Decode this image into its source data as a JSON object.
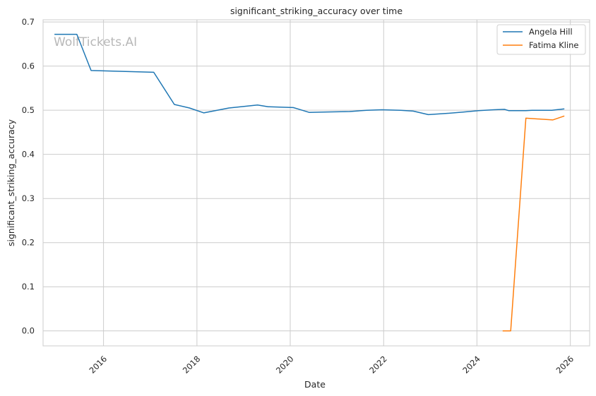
{
  "chart_data": {
    "type": "line",
    "title": "significant_striking_accuracy over time",
    "xlabel": "Date",
    "ylabel": "significant_striking_accuracy",
    "watermark": "WolfTickets.AI",
    "xlim": [
      "2014-09-15",
      "2026-06-01"
    ],
    "ylim": [
      -0.034,
      0.705
    ],
    "x_ticks": [
      "2016",
      "2018",
      "2020",
      "2022",
      "2024",
      "2026"
    ],
    "y_ticks": [
      "0.0",
      "0.1",
      "0.2",
      "0.3",
      "0.4",
      "0.5",
      "0.6",
      "0.7"
    ],
    "grid": true,
    "legend_position": "top-right",
    "series": [
      {
        "name": "Angela Hill",
        "color": "#1f77b4",
        "x": [
          "2014-12-13",
          "2015-06-06",
          "2015-09-26",
          "2017-01-28",
          "2017-07-08",
          "2017-11-04",
          "2018-02-24",
          "2018-09-08",
          "2019-04-20",
          "2019-07-13",
          "2020-01-25",
          "2020-03-01",
          "2020-05-30",
          "2020-09-19",
          "2021-04-10",
          "2021-08-21",
          "2021-12-18",
          "2022-05-14",
          "2022-08-20",
          "2022-12-17",
          "2023-05-20",
          "2023-09-16",
          "2024-01-13",
          "2024-05-11",
          "2024-08-03",
          "2024-09-07",
          "2025-01-18",
          "2025-03-08",
          "2025-08-09",
          "2025-09-13",
          "2025-11-15"
        ],
        "values": [
          0.672,
          0.672,
          0.59,
          0.586,
          0.513,
          0.505,
          0.494,
          0.505,
          0.512,
          0.508,
          0.506,
          0.503,
          0.495,
          0.496,
          0.497,
          0.5,
          0.501,
          0.5,
          0.498,
          0.49,
          0.493,
          0.496,
          0.499,
          0.501,
          0.502,
          0.499,
          0.499,
          0.5,
          0.5,
          0.501,
          0.503
        ]
      },
      {
        "name": "Fatima Kline",
        "color": "#ff7f0e",
        "x": [
          "2024-07-20",
          "2024-09-21",
          "2025-01-18",
          "2025-08-16",
          "2025-11-15"
        ],
        "values": [
          0.0,
          0.0,
          0.482,
          0.478,
          0.487
        ]
      }
    ]
  }
}
